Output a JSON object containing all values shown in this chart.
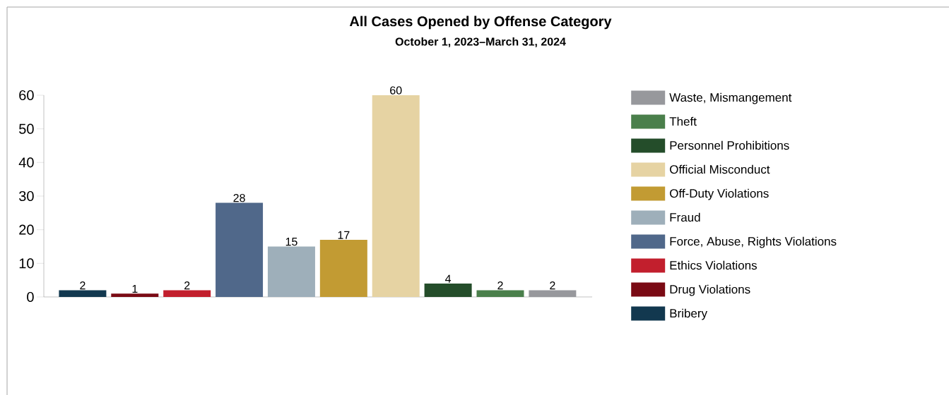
{
  "chart_data": {
    "type": "bar",
    "title": "All Cases Opened by Offense Category",
    "subtitle": "October 1, 2023–March 31, 2024",
    "categories": [
      null,
      null,
      null,
      null,
      null,
      null,
      null,
      null,
      null,
      null
    ],
    "series": [
      {
        "name": "Waste, Mismangement",
        "color": "#97989c",
        "values": [
          null,
          null,
          null,
          null,
          null,
          null,
          null,
          null,
          null,
          2
        ]
      },
      {
        "name": "Theft",
        "color": "#4a7f4b",
        "values": [
          null,
          null,
          null,
          null,
          null,
          null,
          null,
          null,
          2,
          null
        ]
      },
      {
        "name": "Personnel Prohibitions",
        "color": "#244d2a",
        "values": [
          null,
          null,
          null,
          null,
          null,
          null,
          null,
          4,
          null,
          null
        ]
      },
      {
        "name": "Official Misconduct",
        "color": "#e6d3a3",
        "values": [
          null,
          null,
          null,
          null,
          null,
          null,
          60,
          null,
          null,
          null
        ]
      },
      {
        "name": "Off-Duty Violations",
        "color": "#c29b33",
        "values": [
          null,
          null,
          null,
          null,
          null,
          17,
          null,
          null,
          null,
          null
        ]
      },
      {
        "name": "Fraud",
        "color": "#9eafba",
        "values": [
          null,
          null,
          null,
          null,
          15,
          null,
          null,
          null,
          null,
          null
        ]
      },
      {
        "name": "Force, Abuse, Rights Violations",
        "color": "#50688a",
        "values": [
          null,
          null,
          null,
          28,
          null,
          null,
          null,
          null,
          null,
          null
        ]
      },
      {
        "name": "Ethics Violations",
        "color": "#c21f2d",
        "values": [
          null,
          null,
          2,
          null,
          null,
          null,
          null,
          null,
          null,
          null
        ]
      },
      {
        "name": "Drug Violations",
        "color": "#7a0a14",
        "values": [
          null,
          1,
          null,
          null,
          null,
          null,
          null,
          null,
          null,
          null
        ]
      },
      {
        "name": "Bribery",
        "color": "#12384f",
        "values": [
          2,
          null,
          null,
          null,
          null,
          null,
          null,
          null,
          null,
          null
        ]
      }
    ],
    "ylim": [
      0,
      60
    ],
    "yticks": [
      0,
      10,
      20,
      30,
      40,
      50,
      60
    ],
    "data_labels": true,
    "legend": "right"
  }
}
